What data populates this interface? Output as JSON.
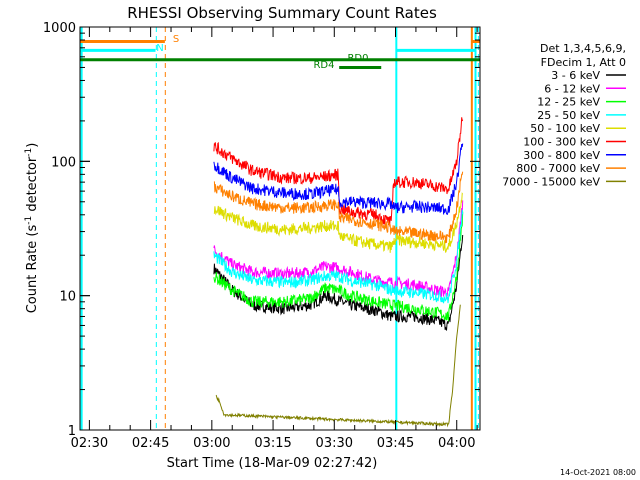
{
  "chart_data": {
    "type": "line",
    "title": "RHESSI Observing Summary Count Rates",
    "xlabel": "Start Time (18-Mar-09 02:27:42)",
    "ylabel_main": "Count Rate (s",
    "ylabel_sup1": "-1",
    "ylabel_mid": " detector",
    "ylabel_sup2": "-1",
    "ylabel_end": ")",
    "y_scale": "log",
    "ylim": [
      1,
      1000
    ],
    "xlim_minutes": [
      -2.3,
      95.7
    ],
    "x_ticks": [
      {
        "label": "02:30",
        "t": 0
      },
      {
        "label": "02:45",
        "t": 15
      },
      {
        "label": "03:00",
        "t": 30
      },
      {
        "label": "03:15",
        "t": 45
      },
      {
        "label": "03:30",
        "t": 60
      },
      {
        "label": "03:45",
        "t": 75
      },
      {
        "label": "04:00",
        "t": 90
      }
    ],
    "y_ticks": [
      {
        "label": "1",
        "v": 1
      },
      {
        "label": "10",
        "v": 10
      },
      {
        "label": "100",
        "v": 100
      },
      {
        "label": "1000",
        "v": 1000
      }
    ],
    "legend": {
      "header_line1": "Det 1,3,4,5,6,9,",
      "header_line2": "FDecim 1, Att 0",
      "placement": "right"
    },
    "series": [
      {
        "name": "3 - 6 keV",
        "color": "#000000",
        "points": [
          [
            30.5,
            16
          ],
          [
            35,
            11
          ],
          [
            40,
            8.5
          ],
          [
            48,
            8
          ],
          [
            54,
            8.5
          ],
          [
            58,
            10
          ],
          [
            61,
            9.2
          ],
          [
            64,
            8.5
          ],
          [
            70,
            7.8
          ],
          [
            74,
            7
          ],
          [
            80,
            7
          ],
          [
            85,
            6.5
          ],
          [
            88,
            6
          ],
          [
            90,
            12
          ],
          [
            91.5,
            30
          ]
        ]
      },
      {
        "name": "6 - 12 keV",
        "color": "#ff00ff",
        "points": [
          [
            30.5,
            22
          ],
          [
            35,
            17
          ],
          [
            40,
            15
          ],
          [
            48,
            14.5
          ],
          [
            54,
            15
          ],
          [
            58,
            16.5
          ],
          [
            61,
            16
          ],
          [
            64,
            15
          ],
          [
            70,
            13
          ],
          [
            74,
            12.5
          ],
          [
            80,
            12
          ],
          [
            85,
            11
          ],
          [
            88,
            10.5
          ],
          [
            90,
            20
          ],
          [
            91.5,
            50
          ]
        ]
      },
      {
        "name": "12 - 25 keV",
        "color": "#00ff00",
        "points": [
          [
            30.5,
            14
          ],
          [
            35,
            11
          ],
          [
            40,
            9
          ],
          [
            48,
            9
          ],
          [
            54,
            9.5
          ],
          [
            58,
            11.5
          ],
          [
            61,
            11
          ],
          [
            64,
            10
          ],
          [
            70,
            9
          ],
          [
            74,
            8.5
          ],
          [
            80,
            8
          ],
          [
            85,
            7.5
          ],
          [
            88,
            7
          ],
          [
            90,
            14
          ],
          [
            91.5,
            40
          ]
        ]
      },
      {
        "name": "25 - 50 keV",
        "color": "#00ffff",
        "points": [
          [
            30.5,
            20
          ],
          [
            35,
            15
          ],
          [
            40,
            13
          ],
          [
            48,
            12.5
          ],
          [
            54,
            13
          ],
          [
            58,
            14
          ],
          [
            61,
            14
          ],
          [
            64,
            13
          ],
          [
            70,
            12
          ],
          [
            74,
            11
          ],
          [
            80,
            10.5
          ],
          [
            85,
            10
          ],
          [
            88,
            9.5
          ],
          [
            90,
            18
          ],
          [
            91.5,
            45
          ]
        ]
      },
      {
        "name": "50 - 100 keV",
        "color": "#dddd00",
        "points": [
          [
            30.5,
            45
          ],
          [
            35,
            38
          ],
          [
            40,
            33
          ],
          [
            48,
            31
          ],
          [
            54,
            32
          ],
          [
            58,
            33
          ],
          [
            61,
            33
          ],
          [
            61.2,
            28
          ],
          [
            64,
            26
          ],
          [
            70,
            24
          ],
          [
            74,
            23
          ],
          [
            75,
            26
          ],
          [
            80,
            25
          ],
          [
            85,
            24
          ],
          [
            88,
            23
          ],
          [
            90,
            35
          ],
          [
            91.5,
            60
          ]
        ]
      },
      {
        "name": "100 - 300 keV",
        "color": "#ff0000",
        "points": [
          [
            30.5,
            130
          ],
          [
            35,
            105
          ],
          [
            40,
            85
          ],
          [
            48,
            75
          ],
          [
            54,
            75
          ],
          [
            58,
            77
          ],
          [
            61,
            80
          ],
          [
            61.2,
            45
          ],
          [
            64,
            42
          ],
          [
            70,
            40
          ],
          [
            74,
            35
          ],
          [
            74.5,
            70
          ],
          [
            80,
            70
          ],
          [
            85,
            65
          ],
          [
            88,
            62
          ],
          [
            90,
            100
          ],
          [
            91.5,
            230
          ]
        ]
      },
      {
        "name": "300 - 800 keV",
        "color": "#0000ff",
        "points": [
          [
            30.5,
            95
          ],
          [
            35,
            75
          ],
          [
            40,
            63
          ],
          [
            48,
            58
          ],
          [
            54,
            57
          ],
          [
            58,
            60
          ],
          [
            61,
            62
          ],
          [
            61.2,
            50
          ],
          [
            64,
            50
          ],
          [
            70,
            49
          ],
          [
            74,
            48
          ],
          [
            74.5,
            45
          ],
          [
            80,
            46
          ],
          [
            85,
            45
          ],
          [
            88,
            44
          ],
          [
            90,
            70
          ],
          [
            91.5,
            150
          ]
        ]
      },
      {
        "name": "800 - 7000 keV",
        "color": "#ff8000",
        "points": [
          [
            30.5,
            65
          ],
          [
            35,
            55
          ],
          [
            40,
            48
          ],
          [
            48,
            45
          ],
          [
            54,
            45
          ],
          [
            58,
            47
          ],
          [
            61,
            48
          ],
          [
            61.2,
            38
          ],
          [
            64,
            37
          ],
          [
            70,
            34
          ],
          [
            74,
            32
          ],
          [
            74.5,
            30
          ],
          [
            80,
            29
          ],
          [
            85,
            28
          ],
          [
            88,
            27
          ],
          [
            90,
            45
          ],
          [
            91.5,
            90
          ]
        ]
      },
      {
        "name": "7000 - 15000 keV",
        "color": "#808000",
        "points": [
          [
            31,
            1.8
          ],
          [
            32,
            1.6
          ],
          [
            33,
            1.3
          ],
          [
            88,
            1.1
          ],
          [
            89,
            2
          ],
          [
            90,
            5
          ],
          [
            91,
            9
          ]
        ]
      }
    ],
    "flags": [
      {
        "name": "S",
        "color": "#ff8000",
        "y_level": 780,
        "x_ranges": [
          [
            -2.3,
            18.5
          ],
          [
            93.8,
            95.7
          ]
        ]
      },
      {
        "name": "N",
        "color": "#00ffff",
        "y_level": 670,
        "x_ranges": [
          [
            -2.3,
            16.2
          ],
          [
            75,
            94.6
          ]
        ]
      },
      {
        "name": "RD0",
        "color": "#008000",
        "y_level": 570,
        "x_ranges": [
          [
            -2.3,
            95.7
          ]
        ]
      },
      {
        "name": "RD4",
        "color": "#008000",
        "y_level": 500,
        "x_ranges": [
          [
            61.2,
            71.5
          ]
        ]
      }
    ],
    "vlines_solid": [
      {
        "t": -1.9,
        "color": "#00ffff"
      },
      {
        "t": 75.2,
        "color": "#00ffff"
      },
      {
        "t": 94.6,
        "color": "#00ffff"
      },
      {
        "t": 93.7,
        "color": "#ff8000"
      }
    ],
    "vlines_dashed": [
      {
        "t": 16.4,
        "color": "#00ffff"
      },
      {
        "t": 18.6,
        "color": "#ff8000"
      },
      {
        "t": 95.3,
        "color": "#00ffff"
      }
    ]
  },
  "footer": {
    "date_stamp": "14-Oct-2021 08:00"
  }
}
